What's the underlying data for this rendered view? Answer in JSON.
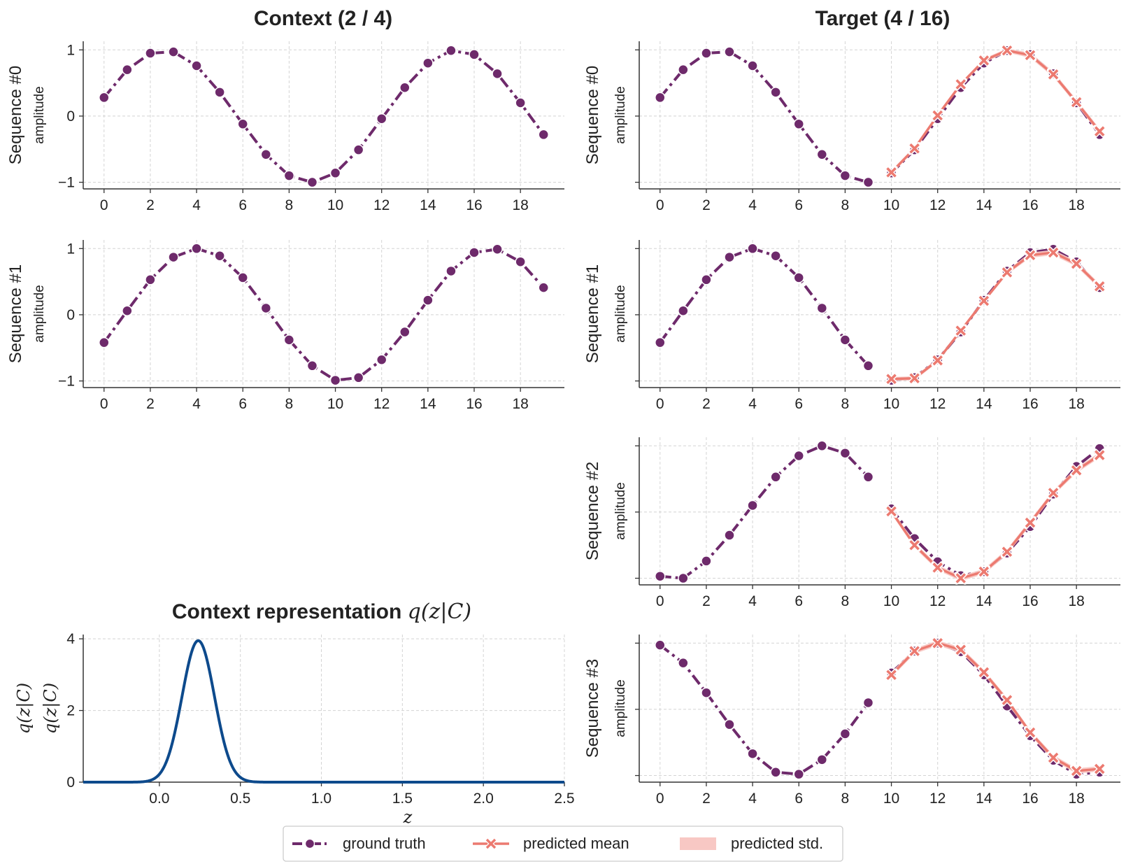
{
  "figure": {
    "context_title": "Context (2 / 4)",
    "target_title": "Target (4 / 16)",
    "repr_title_text": "Context representation ",
    "repr_title_math": "q(z|C)"
  },
  "legend": {
    "ground_truth": "ground truth",
    "predicted_mean": "predicted mean",
    "predicted_std": "predicted std."
  },
  "colors": {
    "ground_truth": "#6e2a6b",
    "predicted_mean": "#ec7a70",
    "predicted_std": "#f8c8c4",
    "density": "#0d4a8c",
    "grid": "#d4d4d4",
    "axis": "#333333"
  },
  "chart_data": [
    {
      "type": "line",
      "panel": "context-seq-0",
      "row_label": "Sequence #0",
      "ylabel": "amplitude",
      "xlim": [
        -0.9,
        19.9
      ],
      "ylim": [
        -1.1,
        1.13
      ],
      "xticks": [
        0,
        2,
        4,
        6,
        8,
        10,
        12,
        14,
        16,
        18
      ],
      "yticks": [
        -1,
        0,
        1
      ],
      "series": [
        {
          "name": "ground truth",
          "x": [
            0,
            1,
            2,
            3,
            4,
            5,
            6,
            7,
            8,
            9,
            10,
            11,
            12,
            13,
            14,
            15,
            16,
            17,
            18,
            19
          ],
          "values": [
            0.28,
            0.7,
            0.95,
            0.97,
            0.76,
            0.36,
            -0.12,
            -0.58,
            -0.9,
            -1.0,
            -0.86,
            -0.51,
            -0.04,
            0.43,
            0.8,
            0.99,
            0.93,
            0.64,
            0.2,
            -0.28
          ]
        }
      ]
    },
    {
      "type": "line",
      "panel": "context-seq-1",
      "row_label": "Sequence #1",
      "ylabel": "amplitude",
      "xlim": [
        -0.9,
        19.9
      ],
      "ylim": [
        -1.1,
        1.13
      ],
      "xticks": [
        0,
        2,
        4,
        6,
        8,
        10,
        12,
        14,
        16,
        18
      ],
      "yticks": [
        -1,
        0,
        1
      ],
      "series": [
        {
          "name": "ground truth",
          "x": [
            0,
            1,
            2,
            3,
            4,
            5,
            6,
            7,
            8,
            9,
            10,
            11,
            12,
            13,
            14,
            15,
            16,
            17,
            18,
            19
          ],
          "values": [
            -0.42,
            0.06,
            0.53,
            0.87,
            1.0,
            0.89,
            0.56,
            0.1,
            -0.38,
            -0.77,
            -0.99,
            -0.95,
            -0.68,
            -0.26,
            0.22,
            0.66,
            0.94,
            0.99,
            0.8,
            0.41
          ]
        }
      ]
    },
    {
      "type": "line",
      "panel": "target-seq-0",
      "row_label": "Sequence #0",
      "ylabel": "amplitude",
      "xlim": [
        -0.9,
        19.9
      ],
      "ylim": [
        -1.1,
        1.13
      ],
      "xticks": [
        0,
        2,
        4,
        6,
        8,
        10,
        12,
        14,
        16,
        18
      ],
      "yticks": [
        -1,
        0,
        1
      ],
      "series": [
        {
          "name": "ground truth",
          "x": [
            0,
            1,
            2,
            3,
            4,
            5,
            6,
            7,
            8,
            9,
            10,
            11,
            12,
            13,
            14,
            15,
            16,
            17,
            18,
            19
          ],
          "values": [
            0.28,
            0.7,
            0.95,
            0.97,
            0.76,
            0.36,
            -0.12,
            -0.58,
            -0.9,
            -1.0,
            -0.86,
            -0.51,
            -0.04,
            0.43,
            0.8,
            0.99,
            0.93,
            0.64,
            0.2,
            -0.28
          ]
        },
        {
          "name": "predicted mean",
          "x": [
            10,
            11,
            12,
            13,
            14,
            15,
            16,
            17,
            18,
            19
          ],
          "values": [
            -0.85,
            -0.49,
            0.01,
            0.48,
            0.84,
            0.99,
            0.92,
            0.63,
            0.21,
            -0.23
          ],
          "std": [
            0.03,
            0.03,
            0.03,
            0.03,
            0.03,
            0.03,
            0.04,
            0.04,
            0.04,
            0.04
          ]
        }
      ]
    },
    {
      "type": "line",
      "panel": "target-seq-1",
      "row_label": "Sequence #1",
      "ylabel": "amplitude",
      "xlim": [
        -0.9,
        19.9
      ],
      "ylim": [
        -1.1,
        1.13
      ],
      "xticks": [
        0,
        2,
        4,
        6,
        8,
        10,
        12,
        14,
        16,
        18
      ],
      "yticks": [
        -1,
        0,
        1
      ],
      "series": [
        {
          "name": "ground truth",
          "x": [
            0,
            1,
            2,
            3,
            4,
            5,
            6,
            7,
            8,
            9,
            10,
            11,
            12,
            13,
            14,
            15,
            16,
            17,
            18,
            19
          ],
          "values": [
            -0.42,
            0.06,
            0.53,
            0.87,
            1.0,
            0.89,
            0.56,
            0.1,
            -0.38,
            -0.77,
            -0.99,
            -0.95,
            -0.68,
            -0.26,
            0.22,
            0.66,
            0.94,
            0.99,
            0.8,
            0.41
          ]
        },
        {
          "name": "predicted mean",
          "x": [
            10,
            11,
            12,
            13,
            14,
            15,
            16,
            17,
            18,
            19
          ],
          "values": [
            -0.97,
            -0.96,
            -0.69,
            -0.24,
            0.21,
            0.64,
            0.9,
            0.94,
            0.77,
            0.43
          ],
          "std": [
            0.03,
            0.03,
            0.03,
            0.03,
            0.03,
            0.03,
            0.04,
            0.04,
            0.04,
            0.04
          ]
        }
      ]
    },
    {
      "type": "line",
      "panel": "target-seq-2",
      "row_label": "Sequence #2",
      "ylabel": "amplitude",
      "xlim": [
        -0.9,
        19.9
      ],
      "ylim": [
        -1.1,
        1.13
      ],
      "xticks": [
        0,
        2,
        4,
        6,
        8,
        10,
        12,
        14,
        16,
        18
      ],
      "yticks": [
        -1,
        0,
        1
      ],
      "series": [
        {
          "name": "ground truth",
          "x": [
            0,
            1,
            2,
            3,
            4,
            5,
            6,
            7,
            8,
            9,
            10,
            11,
            12,
            13,
            14,
            15,
            16,
            17,
            18,
            19
          ],
          "values": [
            -0.97,
            -1.0,
            -0.74,
            -0.35,
            0.1,
            0.53,
            0.85,
            1.0,
            0.89,
            0.53,
            0.05,
            -0.4,
            -0.75,
            -0.96,
            -0.9,
            -0.62,
            -0.22,
            0.27,
            0.69,
            0.96
          ]
        },
        {
          "name": "predicted mean",
          "x": [
            10,
            11,
            12,
            13,
            14,
            15,
            16,
            17,
            18,
            19
          ],
          "values": [
            0.01,
            -0.5,
            -0.84,
            -1.0,
            -0.9,
            -0.6,
            -0.16,
            0.29,
            0.63,
            0.86
          ],
          "std": [
            0.04,
            0.04,
            0.04,
            0.04,
            0.04,
            0.04,
            0.04,
            0.04,
            0.04,
            0.04
          ]
        }
      ]
    },
    {
      "type": "line",
      "panel": "target-seq-3",
      "row_label": "Sequence #3",
      "ylabel": "amplitude",
      "xlim": [
        -0.9,
        19.9
      ],
      "ylim": [
        -1.1,
        1.13
      ],
      "xticks": [
        0,
        2,
        4,
        6,
        8,
        10,
        12,
        14,
        16,
        18
      ],
      "yticks": [
        -1,
        0,
        1
      ],
      "series": [
        {
          "name": "ground truth",
          "x": [
            0,
            1,
            2,
            3,
            4,
            5,
            6,
            7,
            8,
            9,
            10,
            11,
            12,
            13,
            14,
            15,
            16,
            17,
            18,
            19
          ],
          "values": [
            0.97,
            0.7,
            0.25,
            -0.23,
            -0.67,
            -0.95,
            -0.98,
            -0.76,
            -0.37,
            0.1,
            0.55,
            0.88,
            1.0,
            0.87,
            0.52,
            0.05,
            -0.4,
            -0.77,
            -0.98,
            -0.95
          ]
        },
        {
          "name": "predicted mean",
          "x": [
            10,
            11,
            12,
            13,
            14,
            15,
            16,
            17,
            18,
            19
          ],
          "values": [
            0.52,
            0.88,
            1.0,
            0.9,
            0.56,
            0.14,
            -0.35,
            -0.73,
            -0.93,
            -0.9
          ],
          "std": [
            0.04,
            0.04,
            0.04,
            0.04,
            0.04,
            0.04,
            0.04,
            0.04,
            0.04,
            0.04
          ]
        }
      ]
    },
    {
      "type": "line",
      "panel": "context-representation",
      "xlabel": "z",
      "ylabel": "q(z|C)",
      "row_label": "q(z|C)",
      "xlim": [
        -0.47,
        2.5
      ],
      "ylim": [
        0,
        4.12
      ],
      "xticks": [
        0.0,
        0.5,
        1.0,
        1.5,
        2.0,
        2.5
      ],
      "yticks": [
        0,
        2,
        4
      ],
      "xtick_labels": [
        "0.0",
        "0.5",
        "1.0",
        "1.5",
        "2.0",
        "2.5"
      ],
      "series": [
        {
          "name": "q(z|C)",
          "distribution": "gaussian",
          "mean": 0.24,
          "std": 0.1,
          "peak": 3.95
        }
      ]
    }
  ]
}
